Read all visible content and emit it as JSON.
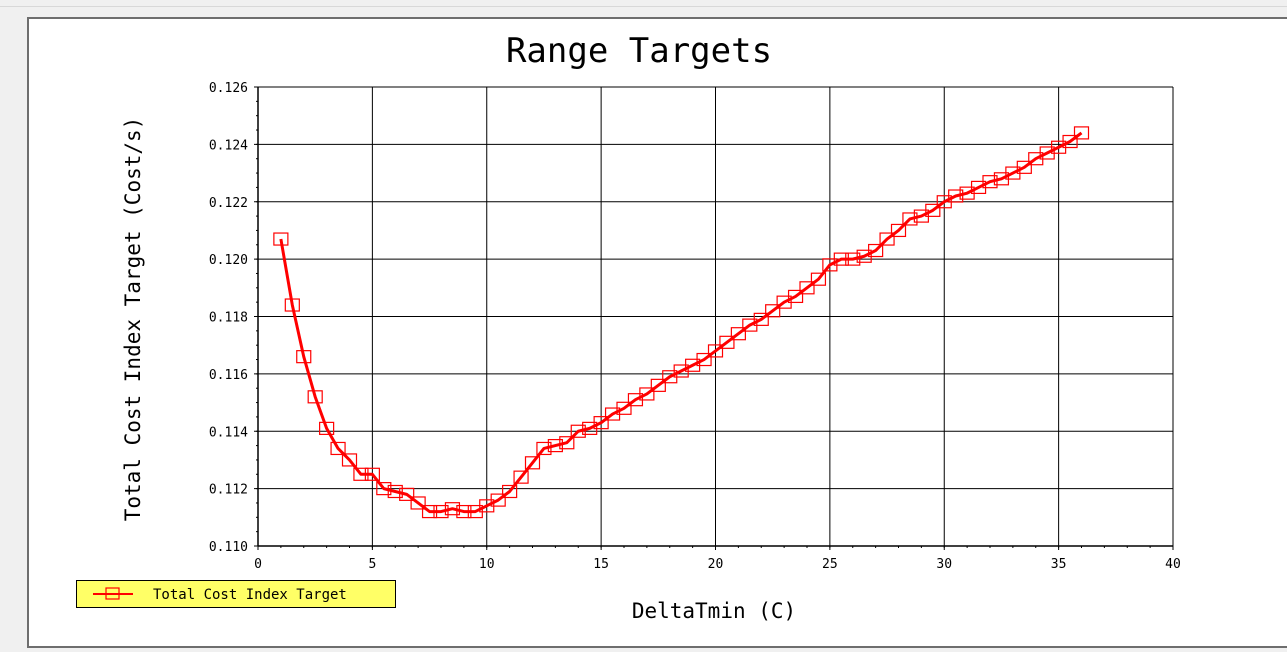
{
  "chart_data": {
    "type": "line",
    "title": "Range Targets",
    "xlabel": "DeltaTmin (C)",
    "ylabel": "Total Cost Index Target (Cost/s)",
    "xlim": [
      0,
      40
    ],
    "ylim": [
      0.11,
      0.126
    ],
    "x_ticks": [
      "0",
      "5",
      "10",
      "15",
      "20",
      "25",
      "30",
      "35",
      "40"
    ],
    "y_ticks": [
      "0.110",
      "0.112",
      "0.114",
      "0.116",
      "0.118",
      "0.120",
      "0.122",
      "0.124",
      "0.126"
    ],
    "grid": true,
    "legend_position": "bottom-left",
    "series": [
      {
        "name": "Total Cost Index Target",
        "color": "#ff0000",
        "marker": "square",
        "x": [
          1.0,
          1.5,
          2.0,
          2.5,
          3.0,
          3.5,
          4.0,
          4.5,
          5.0,
          5.5,
          6.0,
          6.5,
          7.0,
          7.5,
          8.0,
          8.5,
          9.0,
          9.5,
          10.0,
          10.5,
          11.0,
          11.5,
          12.0,
          12.5,
          13.0,
          13.5,
          14.0,
          14.5,
          15.0,
          15.5,
          16.0,
          16.5,
          17.0,
          17.5,
          18.0,
          18.5,
          19.0,
          19.5,
          20.0,
          20.5,
          21.0,
          21.5,
          22.0,
          22.5,
          23.0,
          23.5,
          24.0,
          24.5,
          25.0,
          25.5,
          26.0,
          26.5,
          27.0,
          27.5,
          28.0,
          28.5,
          29.0,
          29.5,
          30.0,
          30.5,
          31.0,
          31.5,
          32.0,
          32.5,
          33.0,
          33.5,
          34.0,
          34.5,
          35.0,
          35.5,
          36.0
        ],
        "y": [
          0.1207,
          0.1184,
          0.1166,
          0.1152,
          0.1141,
          0.1134,
          0.113,
          0.1125,
          0.1125,
          0.112,
          0.1119,
          0.1118,
          0.1115,
          0.1112,
          0.1112,
          0.1113,
          0.1112,
          0.1112,
          0.1114,
          0.1116,
          0.1119,
          0.1124,
          0.1129,
          0.1134,
          0.1135,
          0.1136,
          0.114,
          0.1141,
          0.1143,
          0.1146,
          0.1148,
          0.1151,
          0.1153,
          0.1156,
          0.1159,
          0.1161,
          0.1163,
          0.1165,
          0.1168,
          0.1171,
          0.1174,
          0.1177,
          0.1179,
          0.1182,
          0.1185,
          0.1187,
          0.119,
          0.1193,
          0.1198,
          0.12,
          0.12,
          0.1201,
          0.1203,
          0.1207,
          0.121,
          0.1214,
          0.1215,
          0.1217,
          0.122,
          0.1222,
          0.1223,
          0.1225,
          0.1227,
          0.1228,
          0.123,
          0.1232,
          0.1235,
          0.1237,
          0.1239,
          0.1241,
          0.1244
        ]
      }
    ]
  }
}
